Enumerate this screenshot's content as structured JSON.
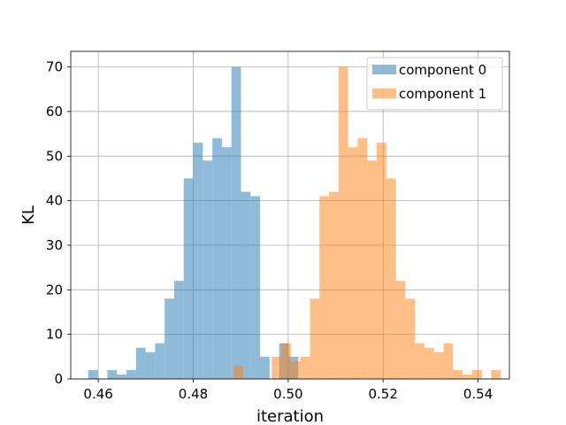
{
  "chart_data": {
    "type": "histogram",
    "title": "",
    "xlabel": "iteration",
    "ylabel": "KL",
    "xlim": [
      0.4542,
      0.5466
    ],
    "ylim": [
      0,
      73.5
    ],
    "xticks": [
      0.46,
      0.48,
      0.5,
      0.52,
      0.54
    ],
    "xtick_labels": [
      "0.46",
      "0.48",
      "0.50",
      "0.52",
      "0.54"
    ],
    "yticks": [
      0,
      10,
      20,
      30,
      40,
      50,
      60,
      70
    ],
    "ytick_labels": [
      "0",
      "10",
      "20",
      "30",
      "40",
      "50",
      "60",
      "70"
    ],
    "grid": true,
    "legend_position": "top-right",
    "bar_opacity": 0.5,
    "series": [
      {
        "name": "component 0",
        "color": "#1f77b4",
        "bin_start": 0.4579,
        "bin_width": 0.00201,
        "counts": [
          2,
          0,
          2,
          1,
          2,
          7,
          6,
          8,
          18,
          22,
          45,
          53,
          49,
          54,
          52,
          70,
          42,
          41,
          5,
          0,
          8,
          5
        ]
      },
      {
        "name": "component 1",
        "color": "#ff7f0e",
        "bin_start": 0.4885,
        "bin_width": 0.00201,
        "counts": [
          3,
          0,
          0,
          0,
          5,
          8,
          4,
          5,
          18,
          41,
          42,
          70,
          52,
          54,
          49,
          53,
          45,
          22,
          18,
          8,
          7,
          6,
          8,
          2,
          1,
          2,
          0,
          2
        ]
      }
    ]
  }
}
